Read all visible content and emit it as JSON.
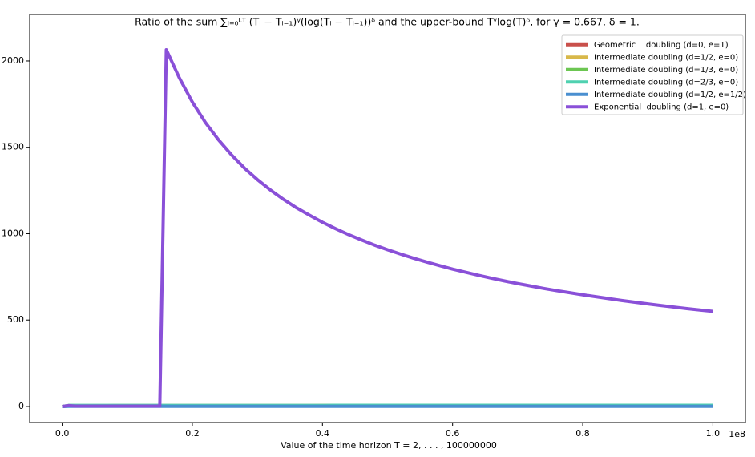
{
  "chart_data": {
    "type": "line",
    "title": "Ratio of the sum ∑ᵢ₌₀ᴸᵀ (Tᵢ − Tᵢ₋₁)ᵞ(log(Tᵢ − Tᵢ₋₁))ᵟ and the upper-bound Tᵞlog(T)ᵟ, for γ = 0.667, δ = 1.",
    "x_label": "Value of the time horizon T = 2, . . . , 100000000",
    "x_offset_label": "1e8",
    "x": [
      0,
      0.01,
      0.02,
      0.04,
      0.06,
      0.08,
      0.1,
      0.12,
      0.14,
      0.15,
      0.16,
      0.18,
      0.2,
      0.22,
      0.24,
      0.26,
      0.28,
      0.3,
      0.32,
      0.34,
      0.36,
      0.38,
      0.4,
      0.42,
      0.44,
      0.46,
      0.48,
      0.5,
      0.52,
      0.54,
      0.56,
      0.58,
      0.6,
      0.62,
      0.64,
      0.66,
      0.68,
      0.7,
      0.72,
      0.74,
      0.76,
      0.78,
      0.8,
      0.82,
      0.84,
      0.86,
      0.88,
      0.9,
      0.92,
      0.94,
      0.96,
      0.98,
      1.0
    ],
    "series": [
      {
        "name": "Geometric    doubling (d=0, e=1)",
        "color": "#c9504b",
        "values": [
          0,
          4,
          4,
          4,
          4,
          5,
          5,
          5,
          5,
          5,
          5,
          5,
          5,
          5,
          5,
          5,
          5,
          5,
          5,
          5,
          5,
          5,
          5,
          5,
          5,
          5,
          5,
          5,
          5,
          5,
          5,
          5,
          5,
          5,
          5,
          5,
          5,
          5,
          5,
          5,
          5,
          5,
          5,
          5,
          5,
          5,
          5,
          5,
          5,
          5,
          5,
          5,
          5
        ]
      },
      {
        "name": "Intermediate doubling (d=1/2, e=0)",
        "color": "#d8b84a",
        "values": [
          0,
          5,
          5,
          5,
          5,
          5,
          5,
          5,
          5,
          5,
          5,
          5,
          5,
          5,
          5,
          5,
          5,
          5,
          5,
          5,
          5,
          5,
          6,
          6,
          6,
          6,
          6,
          6,
          6,
          6,
          6,
          6,
          6,
          6,
          6,
          6,
          6,
          6,
          6,
          6,
          6,
          6,
          6,
          6,
          6,
          6,
          6,
          6,
          6,
          6,
          6,
          6,
          6
        ]
      },
      {
        "name": "Intermediate doubling (d=1/3, e=0)",
        "color": "#6cc652",
        "values": [
          0,
          3,
          3,
          3,
          3,
          3,
          3,
          3,
          3,
          3,
          3,
          3,
          3,
          3,
          3,
          3,
          3,
          3,
          3,
          3,
          3,
          3,
          3,
          3,
          3,
          3,
          3,
          3,
          3,
          3,
          3,
          3,
          3,
          3,
          3,
          3,
          3,
          3,
          3,
          3,
          3,
          3,
          3,
          3,
          3,
          3,
          3,
          3,
          3,
          3,
          3,
          3,
          3
        ]
      },
      {
        "name": "Intermediate doubling (d=2/3, e=0)",
        "color": "#4fd1b0",
        "values": [
          0,
          6,
          6,
          6,
          6,
          6,
          6,
          6,
          6,
          6,
          6,
          6,
          6,
          6,
          6,
          6,
          6,
          6,
          6,
          6,
          6,
          6,
          6,
          7,
          7,
          7,
          7,
          7,
          7,
          7,
          7,
          7,
          7,
          7,
          7,
          7,
          7,
          7,
          7,
          7,
          7,
          7,
          7,
          7,
          7,
          7,
          7,
          7,
          7,
          7,
          7,
          7,
          7
        ]
      },
      {
        "name": "Intermediate doubling (d=1/2, e=1/2)",
        "color": "#4a8fd0",
        "values": [
          0,
          1,
          1,
          1,
          1,
          1,
          1,
          1,
          1,
          1,
          1,
          1,
          1,
          1,
          1,
          1,
          1,
          1,
          1,
          1,
          1,
          1,
          1,
          1,
          1,
          1,
          1,
          1,
          1,
          1,
          1,
          1,
          1,
          1,
          1,
          1,
          1,
          1,
          1,
          1,
          1,
          1,
          1,
          1,
          1,
          1,
          1,
          1,
          1,
          1,
          1,
          1,
          1
        ]
      },
      {
        "name": "Exponential  doubling (d=1, e=0)",
        "color": "#8a50d8",
        "values": [
          0,
          5,
          2,
          2,
          2,
          2,
          2,
          2,
          2,
          2,
          2065,
          1902,
          1762,
          1644,
          1544,
          1457,
          1380,
          1313,
          1253,
          1199,
          1150,
          1107,
          1066,
          1029,
          995,
          964,
          934,
          907,
          882,
          858,
          836,
          815,
          795,
          777,
          759,
          742,
          726,
          711,
          697,
          683,
          670,
          658,
          646,
          635,
          624,
          613,
          603,
          593,
          584,
          575,
          566,
          558,
          550
        ]
      }
    ],
    "xlim": [
      -0.05,
      1.05
    ],
    "ylim": [
      -93,
      2269
    ],
    "xticks": [
      {
        "value": 0,
        "label": "0.0"
      },
      0.2,
      0.4,
      0.6,
      0.8,
      {
        "value": 1,
        "label": "1.0"
      }
    ],
    "yticks": [
      0,
      500,
      1000,
      1500,
      2000
    ],
    "grid": false,
    "legend": "upper right",
    "line_width": 4
  }
}
